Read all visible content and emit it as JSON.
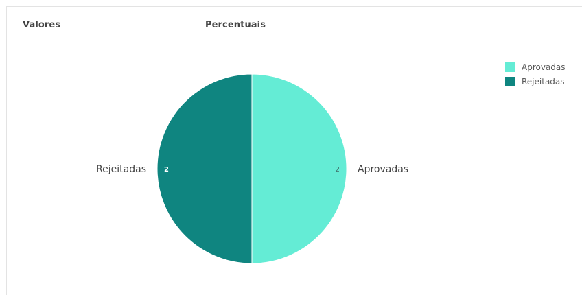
{
  "tabs": [
    {
      "label": "Valores"
    },
    {
      "label": "Percentuais"
    }
  ],
  "colors": {
    "aprovadas": "#64ecd5",
    "rejeitadas": "#0f8580"
  },
  "chart_data": {
    "type": "pie",
    "labels": [
      "Aprovadas",
      "Rejeitadas"
    ],
    "values": [
      2,
      2
    ],
    "colors": [
      "#64ecd5",
      "#0f8580"
    ],
    "legend": {
      "position": "top-right",
      "entries": [
        "Aprovadas",
        "Rejeitadas"
      ]
    }
  }
}
